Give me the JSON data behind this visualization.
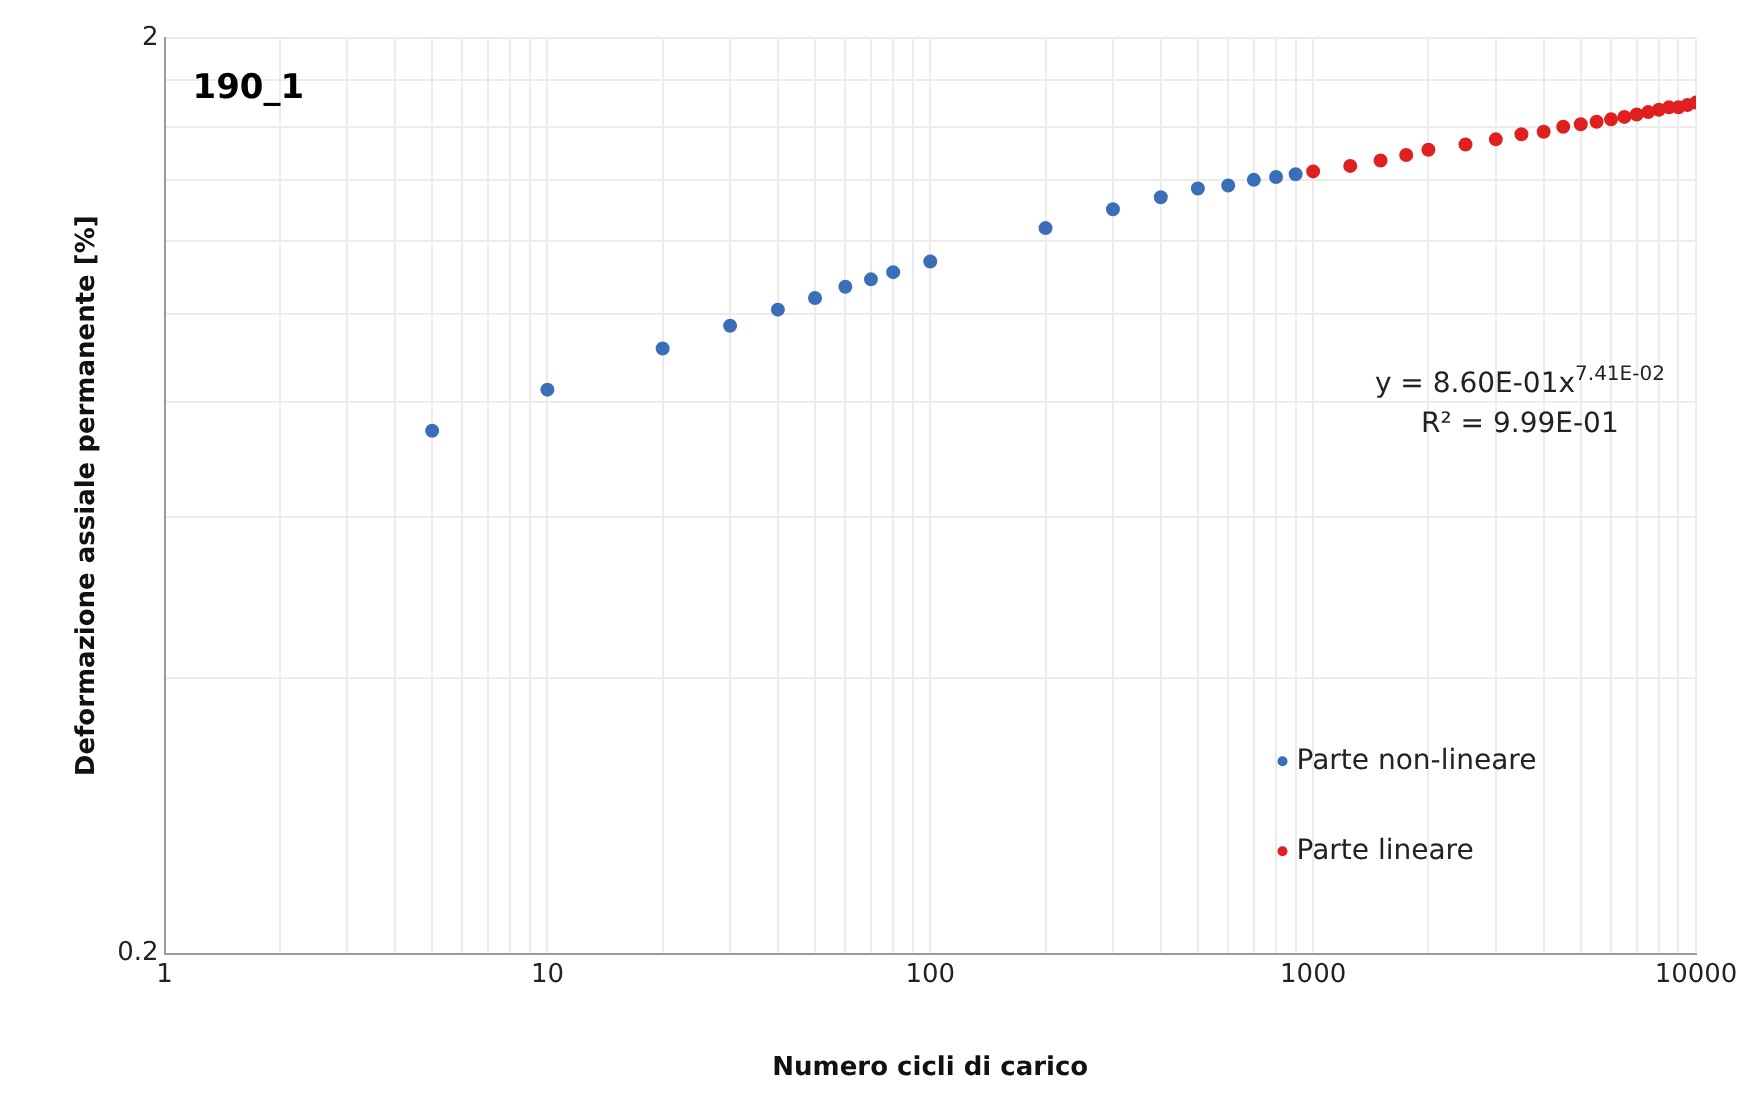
{
  "chart_data": {
    "type": "scatter",
    "title": "190_1",
    "xlabel": "Numero cicli di carico",
    "ylabel": "Deformazione assiale permanente [%]",
    "log": "xy",
    "xlim": [
      1,
      10000
    ],
    "ylim": [
      0.2,
      2
    ],
    "xticks": [
      1,
      {
        "value": 2,
        "label": null
      },
      {
        "value": 3,
        "label": null
      },
      {
        "value": 4,
        "label": null
      },
      {
        "value": 5,
        "label": null
      },
      {
        "value": 6,
        "label": null
      },
      {
        "value": 7,
        "label": null
      },
      {
        "value": 8,
        "label": null
      },
      {
        "value": 9,
        "label": null
      },
      10,
      {
        "value": 20,
        "label": null
      },
      {
        "value": 30,
        "label": null
      },
      {
        "value": 40,
        "label": null
      },
      {
        "value": 50,
        "label": null
      },
      {
        "value": 60,
        "label": null
      },
      {
        "value": 70,
        "label": null
      },
      {
        "value": 80,
        "label": null
      },
      {
        "value": 90,
        "label": null
      },
      100,
      {
        "value": 200,
        "label": null
      },
      {
        "value": 300,
        "label": null
      },
      {
        "value": 400,
        "label": null
      },
      {
        "value": 500,
        "label": null
      },
      {
        "value": 600,
        "label": null
      },
      {
        "value": 700,
        "label": null
      },
      {
        "value": 800,
        "label": null
      },
      {
        "value": 900,
        "label": null
      },
      1000,
      {
        "value": 2000,
        "label": null
      },
      {
        "value": 3000,
        "label": null
      },
      {
        "value": 4000,
        "label": null
      },
      {
        "value": 5000,
        "label": null
      },
      {
        "value": 6000,
        "label": null
      },
      {
        "value": 7000,
        "label": null
      },
      {
        "value": 8000,
        "label": null
      },
      {
        "value": 9000,
        "label": null
      },
      10000
    ],
    "yticks": [
      0.2,
      {
        "value": 0.4,
        "label": null
      },
      {
        "value": 0.6,
        "label": null
      },
      {
        "value": 0.8,
        "label": null
      },
      {
        "value": 1,
        "label": null
      },
      {
        "value": 1.2,
        "label": null
      },
      {
        "value": 1.4,
        "label": null
      },
      {
        "value": 1.6,
        "label": null
      },
      {
        "value": 1.8,
        "label": null
      },
      2
    ],
    "grid": true,
    "legend": "bottom right",
    "marker": "circle",
    "series": [
      {
        "name": "Parte non-lineare",
        "color": "#3a6fb8",
        "x": [
          5,
          10,
          20,
          30,
          40,
          50,
          60,
          70,
          80,
          100,
          200,
          300,
          400,
          500,
          600,
          700,
          800,
          900
        ],
        "values": [
          0.745,
          0.826,
          0.916,
          0.97,
          1.01,
          1.04,
          1.07,
          1.09,
          1.11,
          1.14,
          1.24,
          1.3,
          1.34,
          1.37,
          1.38,
          1.4,
          1.41,
          1.42
        ]
      },
      {
        "name": "Parte lineare",
        "color": "#e02020",
        "x": [
          1000,
          1250,
          1500,
          1750,
          2000,
          2500,
          3000,
          3500,
          4000,
          4500,
          5000,
          5500,
          6000,
          6500,
          7000,
          7500,
          8000,
          8500,
          9000,
          9500,
          10000
        ],
        "values": [
          1.43,
          1.45,
          1.47,
          1.49,
          1.51,
          1.53,
          1.55,
          1.57,
          1.58,
          1.6,
          1.61,
          1.62,
          1.63,
          1.64,
          1.65,
          1.66,
          1.67,
          1.68,
          1.68,
          1.69,
          1.7
        ]
      }
    ],
    "annotations": [
      "y = 8.60E-01x$^{7.41E-02}$",
      "R² = 9.99E-01"
    ]
  }
}
